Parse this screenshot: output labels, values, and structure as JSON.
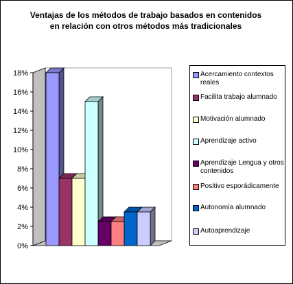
{
  "chart_data": {
    "type": "bar",
    "title_lines": [
      "Ventajas de los métodos de trabajo basados en contenidos",
      "en relación con otros métodos más tradicionales"
    ],
    "categories": [
      "Acercamiento contextos reales",
      "Facilita trabajo alumnado",
      "Motivación alumnado",
      "Aprendizaje activo",
      "Aprendizaje Lengua y otros contenidos",
      "Positivo esporádicamente",
      "Autonomía alumnado",
      "Autoaprendizaje"
    ],
    "values": [
      18,
      7,
      7,
      15,
      2.5,
      2.5,
      3.5,
      3.5
    ],
    "colors": [
      "#9999FF",
      "#993366",
      "#FFFFCC",
      "#CCFFFF",
      "#660066",
      "#FF8080",
      "#0066CC",
      "#CCCCFF"
    ],
    "yticks": [
      "0%",
      "2%",
      "4%",
      "6%",
      "8%",
      "10%",
      "12%",
      "14%",
      "16%",
      "18%"
    ],
    "ylim": [
      0,
      18
    ],
    "legend_position": "right",
    "grid": false,
    "style": "3d-column"
  }
}
